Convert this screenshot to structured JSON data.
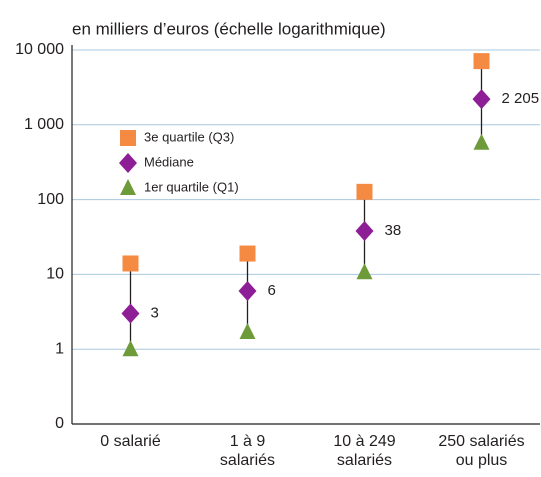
{
  "chart_data": {
    "type": "range-dot",
    "title": "en milliers d’euros (échelle logarithmique)",
    "categories": [
      "0 salarié",
      "1 à 9\nsalariés",
      "10 à 249\nsalariés",
      "250 salariés\nou plus"
    ],
    "series": [
      {
        "name": "3e quartile (Q3)",
        "color": "#f58a42",
        "marker": "square",
        "values": [
          14,
          19,
          127,
          7100
        ]
      },
      {
        "name": "Médiane",
        "color": "#8e1e96",
        "marker": "diamond",
        "values": [
          3,
          6,
          38,
          2205
        ],
        "value_labels": [
          "3",
          "6",
          "38",
          "2 205"
        ]
      },
      {
        "name": "1er quartile (Q1)",
        "color": "#6d9b3a",
        "marker": "triangle",
        "values": [
          1,
          1.7,
          10.7,
          575
        ]
      }
    ],
    "log_scale": true,
    "ylim": [
      0.1,
      10000
    ],
    "yticks": [
      {
        "value": 0.1,
        "label": "0"
      },
      1,
      10,
      100,
      {
        "value": 1000,
        "label": "1 000"
      },
      {
        "value": 10000,
        "label": "10 000"
      }
    ],
    "grid": true,
    "legend": "upper left"
  }
}
